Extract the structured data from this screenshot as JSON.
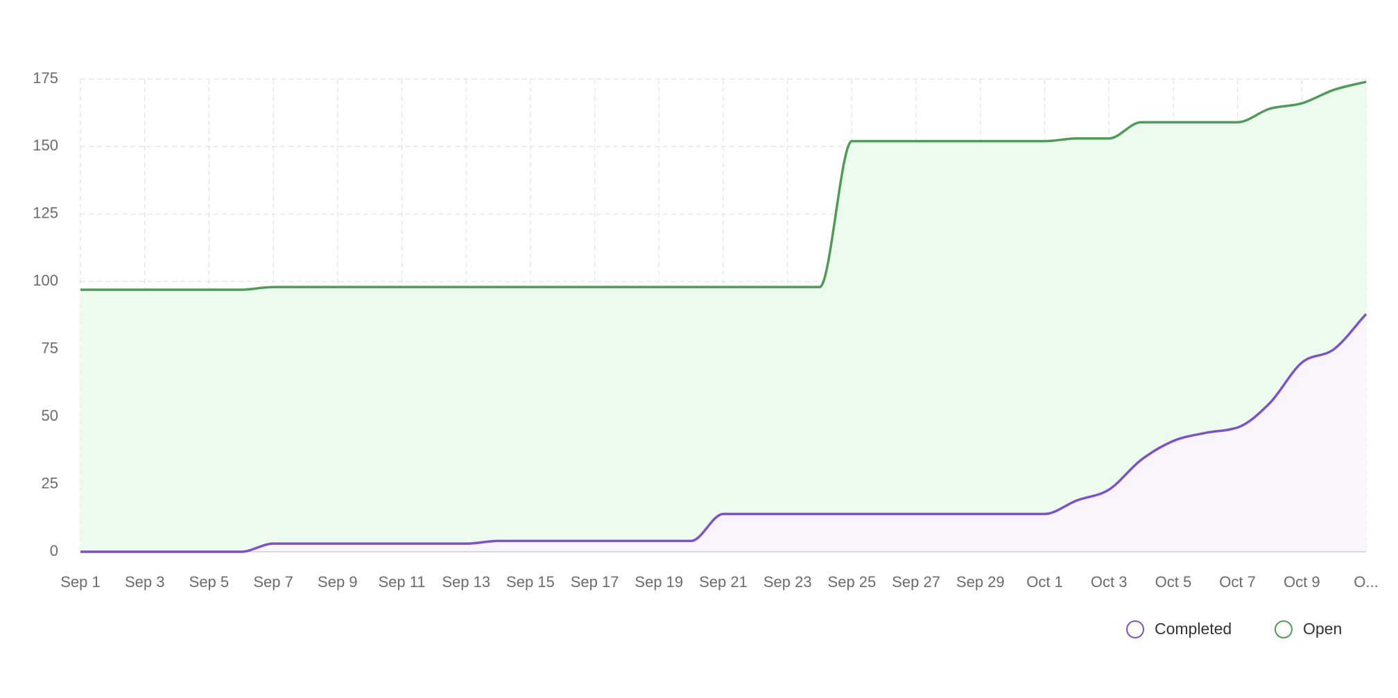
{
  "chart_data": {
    "type": "area-line",
    "categories": [
      "Sep 1",
      null,
      "Sep 3",
      null,
      "Sep 5",
      null,
      "Sep 7",
      null,
      "Sep 9",
      null,
      "Sep 11",
      null,
      "Sep 13",
      null,
      "Sep 15",
      null,
      "Sep 17",
      null,
      "Sep 19",
      null,
      "Sep 21",
      null,
      "Sep 23",
      null,
      "Sep 25",
      null,
      "Sep 27",
      null,
      "Sep 29",
      null,
      "Oct 1",
      null,
      "Oct 3",
      null,
      "Oct 5",
      null,
      "Oct 7",
      null,
      "Oct 9",
      null,
      "O..."
    ],
    "series": [
      {
        "name": "Completed",
        "color": "#7b52c8",
        "fill": "#faf5fd",
        "values": [
          0,
          0,
          0,
          0,
          0,
          0,
          3,
          3,
          3,
          3,
          3,
          3,
          3,
          4,
          4,
          4,
          4,
          4,
          4,
          4,
          14,
          14,
          14,
          14,
          14,
          14,
          14,
          14,
          14,
          14,
          14,
          19,
          23,
          34,
          41,
          44,
          46,
          55,
          70,
          75,
          88
        ]
      },
      {
        "name": "Open",
        "color": "#4e9a56",
        "fill": "#edfbef",
        "values": [
          97,
          97,
          97,
          97,
          97,
          97,
          98,
          98,
          98,
          98,
          98,
          98,
          98,
          98,
          98,
          98,
          98,
          98,
          98,
          98,
          98,
          98,
          98,
          98,
          152,
          152,
          152,
          152,
          152,
          152,
          152,
          153,
          153,
          159,
          159,
          159,
          159,
          164,
          166,
          171,
          174
        ]
      }
    ],
    "ylim": [
      0,
      175
    ],
    "yticks": [
      0,
      25,
      50,
      75,
      100,
      125,
      150,
      175
    ],
    "grid": true,
    "legend": "bottom-right"
  }
}
